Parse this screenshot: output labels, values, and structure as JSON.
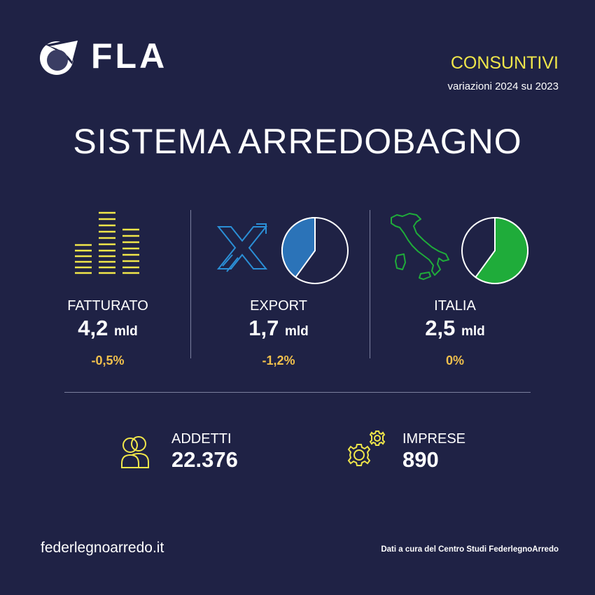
{
  "header": {
    "logo_text": "FLA",
    "logo_icon": "fla-logo-icon",
    "tag_title": "CONSUNTIVI",
    "tag_subtitle": "variazioni 2024 su 2023"
  },
  "title": "SISTEMA ARREDOBAGNO",
  "metrics": [
    {
      "label": "FATTURATO",
      "value": "4,2",
      "unit": "mld",
      "change": "-0,5%",
      "icon": "bars-chart-icon"
    },
    {
      "label": "EXPORT",
      "value": "1,7",
      "unit": "mld",
      "change": "-1,2%",
      "icon": "export-arrows-icon",
      "pie_share": 0.4,
      "pie_color": "#2b73b8"
    },
    {
      "label": "ITALIA",
      "value": "2,5",
      "unit": "mld",
      "change": "0%",
      "icon": "italy-map-icon",
      "pie_share": 0.6,
      "pie_color": "#1fac3a"
    }
  ],
  "stats": [
    {
      "label": "ADDETTI",
      "value": "22.376",
      "icon": "people-icon"
    },
    {
      "label": "IMPRESE",
      "value": "890",
      "icon": "gears-icon"
    }
  ],
  "footer": {
    "website": "federlegnoarredo.it",
    "credit": "Dati a cura del Centro Studi FederlegnoArredo"
  },
  "colors": {
    "background": "#1f2245",
    "accent_yellow": "#f0e64a",
    "change_orange": "#f0c04c",
    "export_blue": "#2b73b8",
    "italy_green": "#1fac3a"
  }
}
